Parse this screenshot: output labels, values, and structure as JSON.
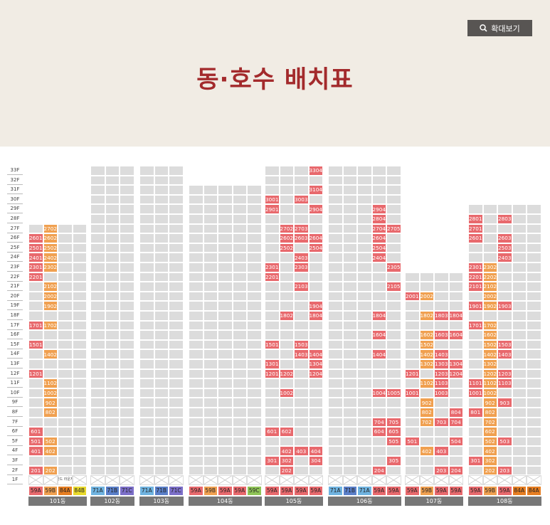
{
  "title": "동·호수 배치표",
  "zoom_button": {
    "label": "확대보기",
    "icon": "search-icon"
  },
  "colors": {
    "red": "#e8696d",
    "orange": "#f0a050",
    "grey": "#dcdcdc",
    "red_alt": "#e94e4e"
  },
  "floor_labels": [
    "33F",
    "32F",
    "31F",
    "30F",
    "29F",
    "28F",
    "27F",
    "26F",
    "25F",
    "24F",
    "23F",
    "22F",
    "21F",
    "20F",
    "19F",
    "18F",
    "17F",
    "16F",
    "15F",
    "14F",
    "13F",
    "12F",
    "11F",
    "10F",
    "9F",
    "8F",
    "7F",
    "6F",
    "5F",
    "4F",
    "3F",
    "2F",
    "1F"
  ],
  "buildings": [
    {
      "name": "101동",
      "height": 27,
      "types": [
        {
          "label": "59A",
          "color": "#e8696d"
        },
        {
          "label": "59B",
          "color": "#f0a050"
        },
        {
          "label": "84A",
          "color": "#e67e22"
        },
        {
          "label": "84B",
          "color": "#e8d92b"
        }
      ],
      "first_floor_label": "골드 라운지",
      "units": [
        [
          "2702",
          2,
          1
        ],
        [
          "2601",
          1,
          0
        ],
        [
          "2602",
          2,
          1
        ],
        [
          "2501",
          1,
          0
        ],
        [
          "2502",
          2,
          1
        ],
        [
          "2401",
          1,
          0
        ],
        [
          "2402",
          2,
          1
        ],
        [
          "2301",
          1,
          0
        ],
        [
          "2302",
          2,
          1
        ],
        [
          "2201",
          1,
          0
        ],
        [
          "2102",
          2,
          1
        ],
        [
          "2002",
          2,
          1
        ],
        [
          "1902",
          2,
          1
        ],
        [
          "1701",
          1,
          0
        ],
        [
          "1702",
          2,
          1
        ],
        [
          "1501",
          1,
          0
        ],
        [
          "1402",
          2,
          1
        ],
        [
          "1201",
          1,
          0
        ],
        [
          "1102",
          2,
          1
        ],
        [
          "1002",
          2,
          1
        ],
        [
          "902",
          2,
          1
        ],
        [
          "802",
          2,
          1
        ],
        [
          "601",
          1,
          0
        ],
        [
          "501",
          1,
          0
        ],
        [
          "502",
          2,
          1
        ],
        [
          "401",
          1,
          0
        ],
        [
          "402",
          2,
          1
        ],
        [
          "201",
          1,
          0
        ],
        [
          "202",
          2,
          1
        ]
      ]
    },
    {
      "name": "102동",
      "height": 33,
      "types": [
        {
          "label": "71A",
          "color": "#6fb3e0"
        },
        {
          "label": "71B",
          "color": "#5a7fc9"
        },
        {
          "label": "71C",
          "color": "#7c6fc9"
        }
      ],
      "units": []
    },
    {
      "name": "103동",
      "height": 33,
      "types": [
        {
          "label": "71A",
          "color": "#6fb3e0"
        },
        {
          "label": "71B",
          "color": "#5a7fc9"
        },
        {
          "label": "71C",
          "color": "#7c6fc9"
        }
      ],
      "units": []
    },
    {
      "name": "104동",
      "height": 31,
      "types": [
        {
          "label": "59A",
          "color": "#e8696d"
        },
        {
          "label": "59B",
          "color": "#f0a050"
        },
        {
          "label": "59A",
          "color": "#e8696d"
        },
        {
          "label": "59A",
          "color": "#e8696d"
        },
        {
          "label": "59C",
          "color": "#8fc457"
        }
      ],
      "units": []
    },
    {
      "name": "105동",
      "height": 33,
      "types": [
        {
          "label": "59A",
          "color": "#e8696d"
        },
        {
          "label": "59A",
          "color": "#e8696d"
        },
        {
          "label": "59A",
          "color": "#e8696d"
        },
        {
          "label": "59A",
          "color": "#e8696d"
        }
      ],
      "units": [
        [
          "3304",
          4,
          0
        ],
        [
          "3104",
          4,
          0
        ],
        [
          "3001",
          1,
          0
        ],
        [
          "3003",
          3,
          0
        ],
        [
          "2901",
          1,
          0
        ],
        [
          "2904",
          4,
          0
        ],
        [
          "2702",
          2,
          0
        ],
        [
          "2703",
          3,
          0
        ],
        [
          "2602",
          2,
          0
        ],
        [
          "2603",
          3,
          0
        ],
        [
          "2604",
          4,
          0
        ],
        [
          "2502",
          2,
          0
        ],
        [
          "2504",
          4,
          0
        ],
        [
          "2403",
          3,
          0
        ],
        [
          "2301",
          1,
          0
        ],
        [
          "2303",
          3,
          0
        ],
        [
          "2201",
          1,
          0
        ],
        [
          "2103",
          3,
          0
        ],
        [
          "1904",
          4,
          0
        ],
        [
          "1802",
          2,
          0
        ],
        [
          "1804",
          4,
          0
        ],
        [
          "1501",
          1,
          0
        ],
        [
          "1503",
          3,
          0
        ],
        [
          "1403",
          3,
          0
        ],
        [
          "1404",
          4,
          0
        ],
        [
          "1301",
          1,
          0
        ],
        [
          "1304",
          4,
          0
        ],
        [
          "1201",
          1,
          0
        ],
        [
          "1202",
          2,
          0
        ],
        [
          "1204",
          4,
          0
        ],
        [
          "1002",
          2,
          0
        ],
        [
          "601",
          1,
          0
        ],
        [
          "602",
          2,
          0
        ],
        [
          "402",
          2,
          0
        ],
        [
          "403",
          3,
          0
        ],
        [
          "404",
          4,
          0
        ],
        [
          "301",
          1,
          0
        ],
        [
          "302",
          2,
          0
        ],
        [
          "304",
          4,
          0
        ],
        [
          "202",
          2,
          0
        ]
      ]
    },
    {
      "name": "106동",
      "height": 33,
      "types": [
        {
          "label": "71A",
          "color": "#6fb3e0"
        },
        {
          "label": "71B",
          "color": "#5a7fc9"
        },
        {
          "label": "71A",
          "color": "#6fb3e0"
        },
        {
          "label": "59A",
          "color": "#e8696d"
        },
        {
          "label": "59A",
          "color": "#e8696d"
        }
      ],
      "units": [
        [
          "2904",
          4,
          0
        ],
        [
          "2804",
          4,
          0
        ],
        [
          "2704",
          4,
          0
        ],
        [
          "2705",
          5,
          0
        ],
        [
          "2604",
          4,
          0
        ],
        [
          "2504",
          4,
          0
        ],
        [
          "2404",
          4,
          0
        ],
        [
          "2305",
          5,
          0
        ],
        [
          "2105",
          5,
          0
        ],
        [
          "1804",
          4,
          0
        ],
        [
          "1604",
          4,
          0
        ],
        [
          "1404",
          4,
          0
        ],
        [
          "1004",
          4,
          0
        ],
        [
          "1005",
          5,
          0
        ],
        [
          "704",
          4,
          0
        ],
        [
          "705",
          5,
          0
        ],
        [
          "604",
          4,
          0
        ],
        [
          "605",
          5,
          0
        ],
        [
          "505",
          5,
          0
        ],
        [
          "305",
          5,
          0
        ],
        [
          "204",
          4,
          0
        ]
      ]
    },
    {
      "name": "107동",
      "height": 22,
      "types": [
        {
          "label": "59A",
          "color": "#e8696d"
        },
        {
          "label": "59B",
          "color": "#f0a050"
        },
        {
          "label": "59A",
          "color": "#e8696d"
        },
        {
          "label": "59A",
          "color": "#e8696d"
        }
      ],
      "units": [
        [
          "2001",
          1,
          0
        ],
        [
          "2002",
          2,
          1
        ],
        [
          "1802",
          2,
          1
        ],
        [
          "1803",
          3,
          0
        ],
        [
          "1804",
          4,
          0
        ],
        [
          "1602",
          2,
          1
        ],
        [
          "1603",
          3,
          0
        ],
        [
          "1604",
          4,
          0
        ],
        [
          "1502",
          2,
          1
        ],
        [
          "1402",
          2,
          1
        ],
        [
          "1403",
          3,
          0
        ],
        [
          "1302",
          2,
          1
        ],
        [
          "1303",
          3,
          0
        ],
        [
          "1304",
          4,
          0
        ],
        [
          "1201",
          1,
          0
        ],
        [
          "1203",
          3,
          0
        ],
        [
          "1204",
          4,
          0
        ],
        [
          "1102",
          2,
          1
        ],
        [
          "1103",
          3,
          0
        ],
        [
          "1001",
          1,
          0
        ],
        [
          "1003",
          3,
          0
        ],
        [
          "902",
          2,
          1
        ],
        [
          "802",
          2,
          1
        ],
        [
          "804",
          4,
          0
        ],
        [
          "702",
          2,
          1
        ],
        [
          "703",
          3,
          0
        ],
        [
          "704",
          4,
          0
        ],
        [
          "501",
          1,
          0
        ],
        [
          "504",
          4,
          0
        ],
        [
          "402",
          2,
          1
        ],
        [
          "403",
          3,
          0
        ],
        [
          "203",
          3,
          0
        ],
        [
          "204",
          4,
          0
        ]
      ]
    },
    {
      "name": "108동",
      "height": 29,
      "types": [
        {
          "label": "59A",
          "color": "#e8696d"
        },
        {
          "label": "59B",
          "color": "#f0a050"
        },
        {
          "label": "59A",
          "color": "#e8696d"
        },
        {
          "label": "84A",
          "color": "#e67e22"
        },
        {
          "label": "84A",
          "color": "#e67e22"
        }
      ],
      "units": [
        [
          "2801",
          1,
          0
        ],
        [
          "2803",
          3,
          0
        ],
        [
          "2701",
          1,
          0
        ],
        [
          "2601",
          1,
          0
        ],
        [
          "2603",
          3,
          0
        ],
        [
          "2503",
          3,
          0
        ],
        [
          "2403",
          3,
          0
        ],
        [
          "2301",
          1,
          0
        ],
        [
          "2302",
          2,
          1
        ],
        [
          "2201",
          1,
          0
        ],
        [
          "2202",
          2,
          1
        ],
        [
          "2101",
          1,
          0
        ],
        [
          "2102",
          2,
          1
        ],
        [
          "2002",
          2,
          1
        ],
        [
          "1901",
          1,
          0
        ],
        [
          "1902",
          2,
          1
        ],
        [
          "1903",
          3,
          0
        ],
        [
          "1701",
          1,
          0
        ],
        [
          "1702",
          2,
          1
        ],
        [
          "1602",
          2,
          1
        ],
        [
          "1502",
          2,
          1
        ],
        [
          "1503",
          3,
          0
        ],
        [
          "1402",
          2,
          1
        ],
        [
          "1403",
          3,
          0
        ],
        [
          "1302",
          2,
          1
        ],
        [
          "1202",
          2,
          1
        ],
        [
          "1203",
          3,
          0
        ],
        [
          "1101",
          1,
          0
        ],
        [
          "1102",
          2,
          1
        ],
        [
          "1103",
          3,
          0
        ],
        [
          "1001",
          1,
          0
        ],
        [
          "1002",
          2,
          1
        ],
        [
          "902",
          2,
          1
        ],
        [
          "903",
          3,
          0
        ],
        [
          "801",
          1,
          0
        ],
        [
          "802",
          2,
          1
        ],
        [
          "702",
          2,
          1
        ],
        [
          "602",
          2,
          1
        ],
        [
          "502",
          2,
          1
        ],
        [
          "503",
          3,
          0
        ],
        [
          "402",
          2,
          1
        ],
        [
          "301",
          1,
          0
        ],
        [
          "302",
          2,
          1
        ],
        [
          "202",
          2,
          1
        ],
        [
          "203",
          3,
          0
        ]
      ]
    }
  ]
}
